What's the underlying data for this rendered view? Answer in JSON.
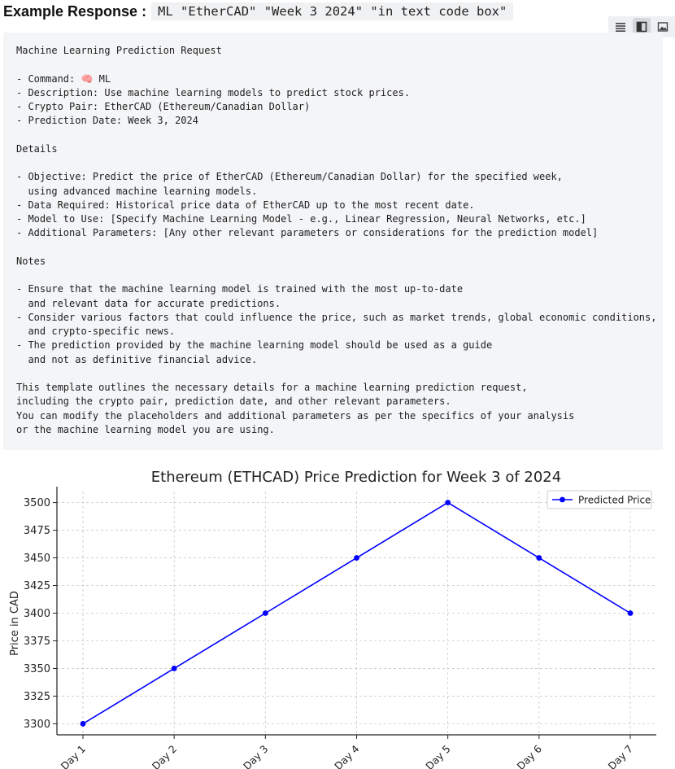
{
  "header": {
    "label": "Example Response :",
    "code": "ML \"EtherCAD\" \"Week 3 2024\" \"in text code box\""
  },
  "toolbar": {
    "icons": [
      "list-view-icon",
      "split-view-icon",
      "image-view-icon"
    ]
  },
  "codebox": {
    "lines": [
      "Machine Learning Prediction Request",
      "",
      "- Command: 🧠 ML",
      "- Description: Use machine learning models to predict stock prices.",
      "- Crypto Pair: EtherCAD (Ethereum/Canadian Dollar)",
      "- Prediction Date: Week 3, 2024",
      "",
      "Details",
      "",
      "- Objective: Predict the price of EtherCAD (Ethereum/Canadian Dollar) for the specified week,",
      "  using advanced machine learning models.",
      "- Data Required: Historical price data of EtherCAD up to the most recent date.",
      "- Model to Use: [Specify Machine Learning Model - e.g., Linear Regression, Neural Networks, etc.]",
      "- Additional Parameters: [Any other relevant parameters or considerations for the prediction model]",
      "",
      "Notes",
      "",
      "- Ensure that the machine learning model is trained with the most up-to-date",
      "  and relevant data for accurate predictions.",
      "- Consider various factors that could influence the price, such as market trends, global economic conditions,",
      "  and crypto-specific news.",
      "- The prediction provided by the machine learning model should be used as a guide",
      "  and not as definitive financial advice.",
      "",
      "This template outlines the necessary details for a machine learning prediction request,",
      "including the crypto pair, prediction date, and other relevant parameters.",
      "You can modify the placeholders and additional parameters as per the specifics of your analysis",
      "or the machine learning model you are using."
    ]
  },
  "chart_data": {
    "type": "line",
    "title": "Ethereum (ETHCAD) Price Prediction for Week 3 of 2024",
    "xlabel": "",
    "ylabel": "Price in CAD",
    "categories": [
      "Day 1",
      "Day 2",
      "Day 3",
      "Day 4",
      "Day 5",
      "Day 6",
      "Day 7"
    ],
    "series": [
      {
        "name": "Predicted Price",
        "values": [
          3300,
          3350,
          3400,
          3450,
          3500,
          3450,
          3400
        ],
        "color": "#0000ff"
      }
    ],
    "yticks": [
      3300,
      3325,
      3350,
      3375,
      3400,
      3425,
      3450,
      3475,
      3500
    ],
    "ylim": [
      3290,
      3510
    ],
    "grid": true,
    "legend_position": "top-right"
  }
}
